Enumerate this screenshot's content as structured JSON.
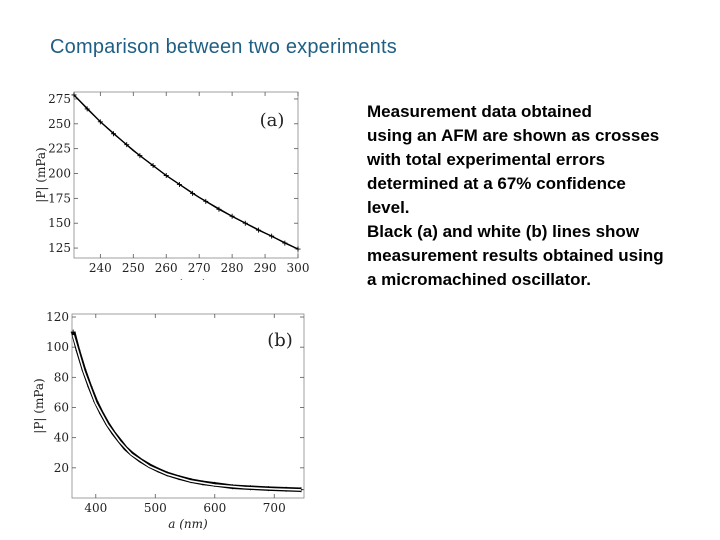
{
  "title": "Comparison between two experiments",
  "caption": {
    "lines": [
      "Measurement data obtained",
      "using an AFM are shown as crosses",
      "with total experimental errors",
      "determined at a 67% confidence",
      "level.",
      "Black (a) and white (b) lines show",
      "measurement results obtained using",
      "a micromachined oscillator."
    ]
  },
  "chart_data": [
    {
      "type": "scatter",
      "panel_label": "(a)",
      "xlabel": "a (nm)",
      "ylabel": "|P| (mPa)",
      "xlim": [
        232,
        300
      ],
      "ylim": [
        115,
        282
      ],
      "xticks": [
        240,
        250,
        260,
        270,
        280,
        290,
        300
      ],
      "yticks": [
        125,
        150,
        175,
        200,
        225,
        250,
        275
      ],
      "series": [
        {
          "marker": "cross",
          "x": [
            232,
            236,
            240,
            244,
            248,
            252,
            256,
            260,
            264,
            268,
            272,
            276,
            280,
            284,
            288,
            292,
            296,
            300
          ],
          "y": [
            279,
            265,
            252,
            240,
            229,
            218,
            208,
            198,
            189,
            180,
            172,
            164,
            157,
            150,
            143,
            137,
            130,
            124
          ]
        },
        {
          "style": "line",
          "color": "#000000",
          "x": [
            232,
            240,
            250,
            260,
            270,
            280,
            290,
            300
          ],
          "y": [
            279,
            252,
            223,
            198,
            176,
            157,
            140,
            124
          ]
        }
      ]
    },
    {
      "type": "scatter",
      "panel_label": "(b)",
      "xlabel": "a (nm)",
      "ylabel": "|P| (mPa)",
      "xlim": [
        360,
        750
      ],
      "ylim": [
        0,
        122
      ],
      "xticks": [
        400,
        500,
        600,
        700
      ],
      "yticks": [
        20,
        40,
        60,
        80,
        100,
        120
      ],
      "series": [
        {
          "marker": "cross",
          "x": [
            362,
            370,
            380,
            390,
            400,
            410,
            420,
            430,
            440,
            450,
            460,
            475,
            490,
            505,
            520,
            540,
            560,
            580,
            600,
            630,
            660,
            690,
            720,
            745
          ],
          "y": [
            110,
            98,
            85,
            74,
            64,
            56,
            49,
            43,
            38,
            33,
            29.5,
            25,
            21.5,
            18.5,
            16,
            13.5,
            11.5,
            10,
            9,
            7.5,
            6.8,
            6.2,
            5.8,
            5.5
          ]
        },
        {
          "style": "line",
          "color": "#ffffff",
          "x": [
            362,
            380,
            400,
            420,
            440,
            460,
            490,
            520,
            560,
            600,
            650,
            700,
            745
          ],
          "y": [
            108,
            84,
            63,
            48.5,
            37.5,
            29,
            21,
            15.8,
            11.2,
            8.6,
            6.9,
            6.0,
            5.4
          ]
        }
      ]
    }
  ]
}
